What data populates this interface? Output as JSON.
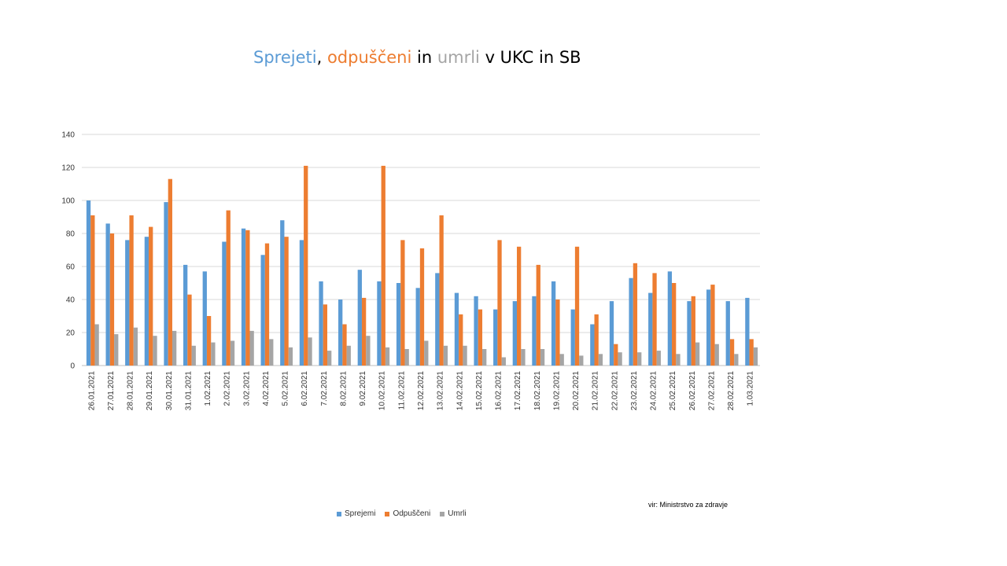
{
  "title": {
    "parts": [
      {
        "text": "Sprejeti",
        "color": "#5b9bd5"
      },
      {
        "text": ", ",
        "color": "#000000"
      },
      {
        "text": "odpuščeni",
        "color": "#ed7d31"
      },
      {
        "text": " in ",
        "color": "#000000"
      },
      {
        "text": "umrli",
        "color": "#a5a5a5"
      },
      {
        "text": " v UKC in SB",
        "color": "#000000"
      }
    ]
  },
  "source_note": "vir: Ministrstvo za zdravje",
  "chart_data": {
    "type": "bar",
    "title": "Sprejeti, odpuščeni in umrli v UKC in SB",
    "xlabel": "",
    "ylabel": "",
    "ylim": [
      0,
      140
    ],
    "yticks": [
      0,
      20,
      40,
      60,
      80,
      100,
      120,
      140
    ],
    "grid": true,
    "legend_position": "bottom",
    "categories": [
      "26.01.2021",
      "27.01.2021",
      "28.01.2021",
      "29.01.2021",
      "30.01.2021",
      "31.01.2021",
      "1.02.2021",
      "2.02.2021",
      "3.02.2021",
      "4.02.2021",
      "5.02.2021",
      "6.02.2021",
      "7.02.2021",
      "8.02.2021",
      "9.02.2021",
      "10.02.2021",
      "11.02.2021",
      "12.02.2021",
      "13.02.2021",
      "14.02.2021",
      "15.02.2021",
      "16.02.2021",
      "17.02.2021",
      "18.02.2021",
      "19.02.2021",
      "20.02.2021",
      "21.02.2021",
      "22.02.2021",
      "23.02.2021",
      "24.02.2021",
      "25.02.2021",
      "26.02.2021",
      "27.02.2021",
      "28.02.2021",
      "1.03.2021"
    ],
    "series": [
      {
        "name": "Sprejemi",
        "color": "#5b9bd5",
        "values": [
          100,
          86,
          76,
          78,
          99,
          61,
          57,
          75,
          83,
          67,
          88,
          76,
          51,
          40,
          58,
          51,
          50,
          47,
          56,
          44,
          42,
          34,
          39,
          42,
          51,
          34,
          25,
          39,
          53,
          44,
          57,
          39,
          46,
          39,
          41
        ]
      },
      {
        "name": "Odpuščeni",
        "color": "#ed7d31",
        "values": [
          91,
          80,
          91,
          84,
          113,
          43,
          30,
          94,
          82,
          74,
          78,
          121,
          37,
          25,
          41,
          121,
          76,
          71,
          91,
          31,
          34,
          76,
          72,
          61,
          40,
          72,
          31,
          13,
          62,
          56,
          50,
          42,
          49,
          16,
          16
        ]
      },
      {
        "name": "Umrli",
        "color": "#a5a5a5",
        "values": [
          25,
          19,
          23,
          18,
          21,
          12,
          14,
          15,
          21,
          16,
          11,
          17,
          9,
          12,
          18,
          11,
          10,
          15,
          12,
          12,
          10,
          5,
          10,
          10,
          7,
          6,
          7,
          8,
          8,
          9,
          7,
          14,
          13,
          7,
          11
        ]
      }
    ]
  }
}
